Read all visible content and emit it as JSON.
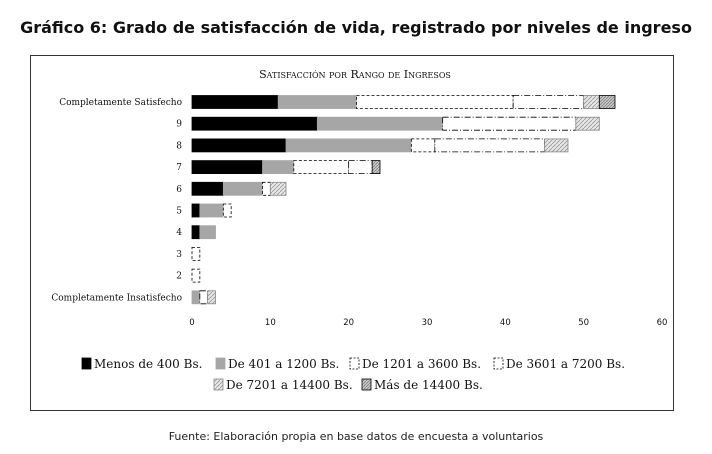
{
  "heading": "Gráfico 6: Grado de satisfacción de vida, registrado por niveles de ingreso",
  "source": "Fuente: Elaboración propia en base datos de encuesta a voluntarios",
  "chart_data": {
    "type": "bar",
    "orientation": "horizontal",
    "stacked": true,
    "title": "Satisfacción por Rango de Ingresos",
    "categories": [
      "Completamente Satisfecho",
      "9",
      "8",
      "7",
      "6",
      "5",
      "4",
      "3",
      "2",
      "Completamente Insatisfecho"
    ],
    "xlim": [
      0,
      60
    ],
    "xticks": [
      0,
      10,
      20,
      30,
      40,
      50,
      60
    ],
    "legend_position": "bottom",
    "series": [
      {
        "name": "Menos de 400 Bs.",
        "color": "#000000",
        "values": [
          11,
          16,
          12,
          9,
          4,
          1,
          1,
          0,
          0,
          0
        ]
      },
      {
        "name": "De 401 a 1200 Bs.",
        "color": "#a6a6a6",
        "values": [
          10,
          16,
          16,
          4,
          5,
          3,
          2,
          0,
          0,
          1
        ]
      },
      {
        "name": "De 1201 a 3600 Bs.",
        "color": "#ffffff",
        "values": [
          20,
          0,
          3,
          7,
          1,
          1,
          0,
          1,
          1,
          0
        ]
      },
      {
        "name": "De 3601 a 7200 Bs.",
        "color": "#ffffff",
        "values": [
          9,
          17,
          14,
          3,
          0,
          0,
          0,
          0,
          0,
          1
        ]
      },
      {
        "name": "De 7201 a 14400 Bs.",
        "color": "#d9d9d9",
        "values": [
          2,
          3,
          3,
          0,
          2,
          0,
          0,
          0,
          0,
          1
        ]
      },
      {
        "name": "Más de 14400 Bs.",
        "color": "#bfbfbf",
        "values": [
          2,
          0,
          0,
          1,
          0,
          0,
          0,
          0,
          0,
          0
        ]
      }
    ]
  }
}
